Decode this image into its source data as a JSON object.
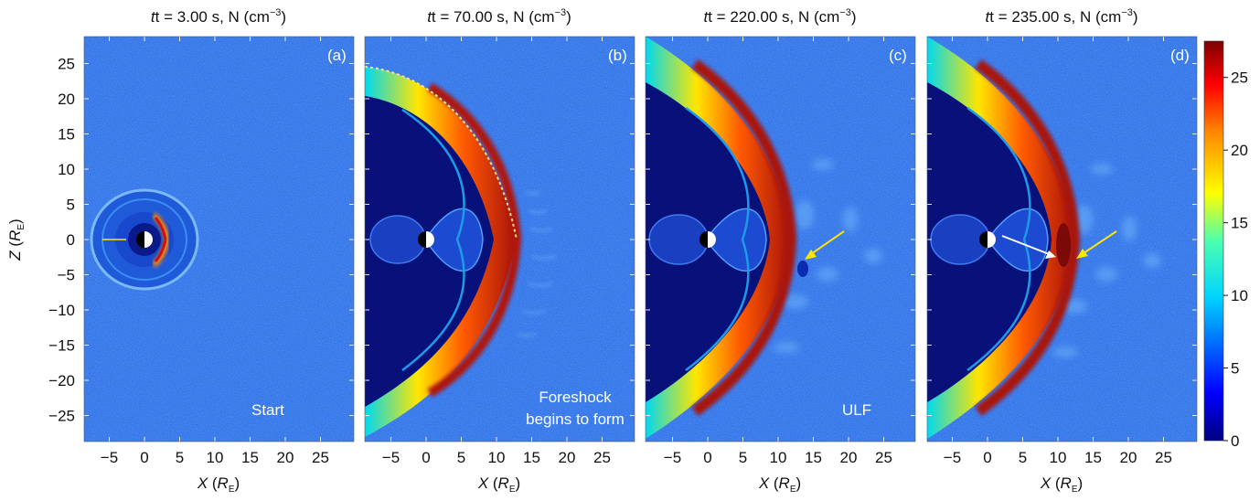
{
  "figure": {
    "panels": [
      {
        "id": "a",
        "time": "3.00",
        "letter": "(a)",
        "annotation": [
          "Start"
        ]
      },
      {
        "id": "b",
        "time": "70.00",
        "letter": "(b)",
        "annotation": [
          "Foreshock",
          "begins to form"
        ]
      },
      {
        "id": "c",
        "time": "220.00",
        "letter": "(c)",
        "annotation": [
          "ULF"
        ]
      },
      {
        "id": "d",
        "time": "235.00",
        "letter": "(d)",
        "annotation": []
      }
    ],
    "title_prefix": "t = ",
    "title_suffix": " s, N (cm",
    "title_exponent": "−3",
    "xlabel_var": "X",
    "xlabel_unit": "R",
    "xlabel_sub": "E",
    "ylabel_var": "Z",
    "ylabel_unit": "R",
    "ylabel_sub": "E",
    "x_ticks": [
      "−5",
      "0",
      "5",
      "10",
      "15",
      "20",
      "25"
    ],
    "y_ticks": [
      "25",
      "20",
      "15",
      "10",
      "5",
      "0",
      "−5",
      "−10",
      "−15",
      "−20",
      "−25"
    ],
    "colorbar_ticks": [
      "25",
      "20",
      "15",
      "10",
      "5",
      "0"
    ],
    "colormap": "jet",
    "colors": {
      "background_field": "#2a6fe8",
      "magnetosphere": "#060b6e",
      "sheath_peak": "#a8120c"
    }
  }
}
